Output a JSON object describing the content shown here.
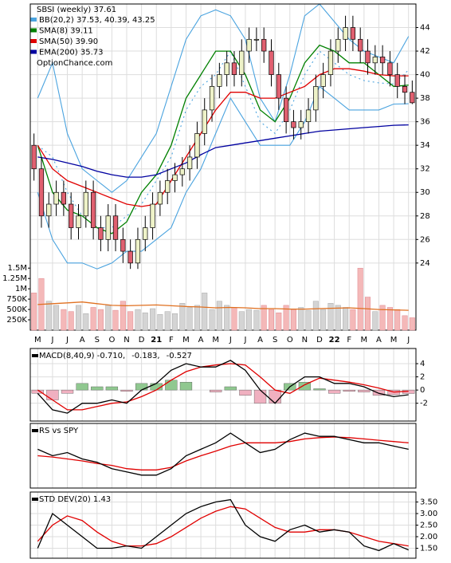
{
  "chart_data": [
    {
      "type": "candlestick",
      "title": "SBSI (weekly) 37.61",
      "source": "OptionChance.com",
      "categories": [
        "M",
        "J",
        "J",
        "A",
        "S",
        "O",
        "N",
        "D",
        "21",
        "F",
        "M",
        "A",
        "M",
        "J",
        "J",
        "A",
        "S",
        "O",
        "N",
        "D",
        "22",
        "F",
        "M",
        "A",
        "M",
        "J"
      ],
      "ylim": [
        18.3,
        46
      ],
      "yticks": [
        24,
        26,
        28,
        30,
        32,
        34,
        36,
        38,
        40,
        42,
        44
      ],
      "grid": true,
      "candles": {
        "open": [
          34,
          32,
          28,
          29,
          30,
          29,
          27,
          28,
          30,
          27,
          26,
          28,
          26,
          25,
          24,
          26,
          27,
          29,
          30,
          31,
          31.5,
          32,
          33,
          35,
          37,
          39,
          40,
          41,
          40,
          42,
          43,
          43,
          42,
          40,
          38,
          36,
          35.5,
          36,
          37,
          39,
          40,
          42,
          43,
          44,
          43,
          42,
          41,
          41.5,
          41,
          40,
          39,
          38.5
        ],
        "high": [
          35,
          33,
          30,
          31,
          31,
          30,
          29,
          31,
          31,
          28,
          29,
          29,
          27,
          26,
          27,
          28,
          30,
          31,
          32,
          32.5,
          33,
          34,
          36,
          38,
          40,
          41,
          42,
          42,
          43,
          44,
          44,
          44,
          43,
          41,
          39,
          37,
          37,
          38,
          40,
          41,
          43,
          44,
          45,
          45,
          44,
          43,
          42.5,
          42.5,
          42,
          41,
          40,
          39.5
        ],
        "low": [
          31,
          27,
          27,
          28,
          28,
          26,
          26,
          27,
          26,
          25,
          25,
          25,
          24,
          23.5,
          23.5,
          25,
          26,
          28,
          29,
          30,
          30.5,
          31,
          32,
          34,
          36,
          38,
          39,
          39,
          39,
          41,
          42,
          41,
          39,
          37,
          35,
          34.5,
          34.5,
          35,
          36,
          38,
          39,
          41,
          42,
          42,
          41,
          40,
          40,
          40,
          39,
          38,
          37.5,
          37.5
        ],
        "close": [
          32,
          28,
          29,
          30,
          29,
          27,
          28,
          30,
          27,
          26,
          28,
          26,
          25,
          24,
          26,
          27,
          29,
          30,
          31,
          31.5,
          32,
          33,
          35,
          37,
          39,
          40,
          41,
          40,
          42,
          43,
          43,
          42,
          40,
          38,
          36,
          35.5,
          36,
          37,
          39,
          40,
          42,
          43,
          44,
          43,
          42,
          41,
          41.5,
          41,
          40,
          39,
          38.5,
          37.61
        ],
        "up_color": "#eef2c8",
        "down_color": "#e06070"
      },
      "series": [
        {
          "name": "BB(20,2) 37.53, 40.39, 43.25",
          "color": "#4aa3df",
          "upper": [
            38,
            41,
            35,
            32,
            31,
            30,
            31,
            33,
            35,
            39,
            43,
            45,
            45.5,
            45,
            43,
            38,
            36,
            40,
            45,
            46,
            44.5,
            43,
            42,
            41.5,
            41,
            43.25
          ],
          "middle": [
            34,
            33,
            30,
            28,
            27,
            27,
            28,
            29,
            31,
            33,
            37,
            39,
            40,
            42,
            39,
            36,
            35,
            37,
            40,
            42,
            41,
            40,
            39.5,
            39.3,
            39.2,
            40.39
          ],
          "lower": [
            30,
            26,
            24,
            24,
            23.5,
            24,
            25,
            25,
            26,
            27,
            30,
            32,
            35,
            38,
            36,
            34,
            34,
            34,
            36,
            39,
            38,
            37,
            37,
            37,
            37.5,
            37.53
          ]
        },
        {
          "name": "SMA(8) 39.11",
          "color": "#008000",
          "values": [
            34,
            30,
            28.5,
            28,
            27,
            26.5,
            27.5,
            30,
            31.5,
            34,
            38,
            40,
            42,
            42,
            40,
            37,
            36,
            38,
            41,
            42.5,
            42,
            41,
            41,
            40,
            39,
            39.11
          ]
        },
        {
          "name": "SMA(50) 39.90",
          "color": "#e00000",
          "values": [
            34,
            32,
            31,
            30.5,
            30,
            29.5,
            29,
            28.8,
            29,
            31,
            33,
            35,
            37,
            38.5,
            38.5,
            38,
            38,
            38.5,
            39,
            40,
            40.5,
            40.5,
            40.3,
            40,
            39.9,
            39.9
          ]
        },
        {
          "name": "EMA(200) 35.73",
          "color": "#0000a0",
          "values": [
            33,
            32.8,
            32.5,
            32.2,
            31.8,
            31.5,
            31.3,
            31.3,
            31.5,
            32,
            32.5,
            33.2,
            33.8,
            34,
            34.2,
            34.4,
            34.6,
            34.8,
            35,
            35.2,
            35.3,
            35.4,
            35.5,
            35.6,
            35.7,
            35.73
          ]
        }
      ]
    },
    {
      "type": "volume",
      "ylim": [
        0,
        1620000
      ],
      "color": "#f4b8b8",
      "yticks": [
        {
          "value": 250000,
          "label": "250K"
        },
        {
          "value": 500000,
          "label": "500K"
        },
        {
          "value": 750000,
          "label": "750K"
        },
        {
          "value": 1000000,
          "label": "1M"
        },
        {
          "value": 1250000,
          "label": "1.25M"
        },
        {
          "value": 1500000,
          "label": "1.5M"
        }
      ],
      "values": [
        900000,
        1250000,
        700000,
        600000,
        500000,
        450000,
        600000,
        400000,
        550000,
        500000,
        600000,
        480000,
        700000,
        450000,
        500000,
        420000,
        520000,
        380000,
        450000,
        400000,
        650000,
        550000,
        600000,
        900000,
        500000,
        700000,
        600000,
        550000,
        450000,
        500000,
        480000,
        600000,
        500000,
        420000,
        600000,
        500000,
        550000,
        480000,
        700000,
        500000,
        650000,
        600000,
        550000,
        500000,
        1500000,
        800000,
        450000,
        600000,
        550000,
        500000,
        350000,
        300000
      ],
      "average": {
        "color": "#e07020",
        "values": [
          620000,
          640000,
          660000,
          680000,
          640000,
          600000,
          590000,
          600000,
          610000,
          590000,
          570000,
          560000,
          540000,
          550000,
          540000,
          520000,
          520000,
          510000,
          510000,
          520000,
          530000,
          540000,
          520000,
          500000,
          490000,
          480000
        ]
      }
    },
    {
      "type": "macd",
      "ylim": [
        -4.7,
        6.3
      ],
      "yticks": [
        -2,
        0,
        2,
        4
      ],
      "series": [
        {
          "name": "MACD(8,40,9) -0.710,",
          "color": "#000000",
          "values": [
            -0.5,
            -3,
            -3.5,
            -2,
            -2,
            -1.5,
            -2,
            0,
            1,
            3,
            4,
            3.5,
            3.5,
            4.5,
            3,
            0,
            -2,
            0.5,
            2,
            2,
            1,
            1,
            0.5,
            -0.5,
            -1,
            -0.71
          ]
        },
        {
          "name": "-0.183,",
          "color": "#e00000",
          "values": [
            0,
            -1.5,
            -3,
            -3,
            -2.5,
            -2,
            -1.8,
            -1,
            0,
            1.5,
            2.8,
            3.5,
            3.8,
            4,
            3.8,
            2,
            0,
            -0.5,
            0.8,
            1.8,
            1.5,
            1.2,
            0.8,
            0.3,
            -0.3,
            -0.183
          ]
        },
        {
          "name": "-0.527",
          "color": "#1f5fbf",
          "positive_color": "#90c890",
          "negative_color": "#f0b0c0",
          "values": [
            -0.5,
            -1.5,
            -0.5,
            1,
            0.5,
            0.5,
            -0.2,
            1,
            1,
            1.5,
            1.2,
            0,
            -0.3,
            0.5,
            -0.8,
            -2,
            -2,
            1,
            1.2,
            0.2,
            -0.5,
            -0.2,
            -0.3,
            -0.8,
            -0.7,
            -0.527
          ]
        }
      ]
    },
    {
      "type": "line",
      "title": "RS vs SPY",
      "ylim": [
        0,
        10
      ],
      "series": [
        {
          "color": "#000000",
          "values": [
            6,
            5,
            5.5,
            4.5,
            4,
            3,
            2.5,
            2,
            2,
            3,
            5,
            6,
            7,
            8.5,
            7,
            5.5,
            6,
            7.5,
            8.5,
            8,
            8,
            7.5,
            7,
            7,
            6.5,
            6
          ]
        },
        {
          "color": "#e00000",
          "values": [
            5,
            4.8,
            4.5,
            4.2,
            3.8,
            3.5,
            3,
            2.8,
            2.8,
            3.2,
            4.2,
            5,
            5.7,
            6.5,
            7,
            7,
            7,
            7.2,
            7.6,
            7.8,
            7.9,
            7.8,
            7.6,
            7.4,
            7.2,
            7
          ]
        }
      ]
    },
    {
      "type": "line",
      "title": "STD DEV(20) 1.43",
      "ylim": [
        1.07,
        3.93
      ],
      "yticks": [
        {
          "value": 1.5,
          "label": "1.50"
        },
        {
          "value": 2,
          "label": "2.00"
        },
        {
          "value": 2.5,
          "label": "2.50"
        },
        {
          "value": 3,
          "label": "3.00"
        },
        {
          "value": 3.5,
          "label": "3.50"
        }
      ],
      "series": [
        {
          "color": "#000000",
          "values": [
            1.5,
            3,
            2.5,
            2,
            1.5,
            1.5,
            1.6,
            1.5,
            2,
            2.5,
            3,
            3.3,
            3.5,
            3.6,
            2.5,
            2,
            1.8,
            2.3,
            2.5,
            2.2,
            2.3,
            2.2,
            1.6,
            1.4,
            1.7,
            1.43
          ]
        },
        {
          "color": "#e00000",
          "values": [
            1.8,
            2.5,
            2.9,
            2.7,
            2.2,
            1.8,
            1.6,
            1.6,
            1.7,
            2,
            2.4,
            2.8,
            3.1,
            3.3,
            3.2,
            2.8,
            2.4,
            2.2,
            2.2,
            2.3,
            2.3,
            2.2,
            2,
            1.8,
            1.7,
            1.6
          ]
        }
      ]
    }
  ]
}
